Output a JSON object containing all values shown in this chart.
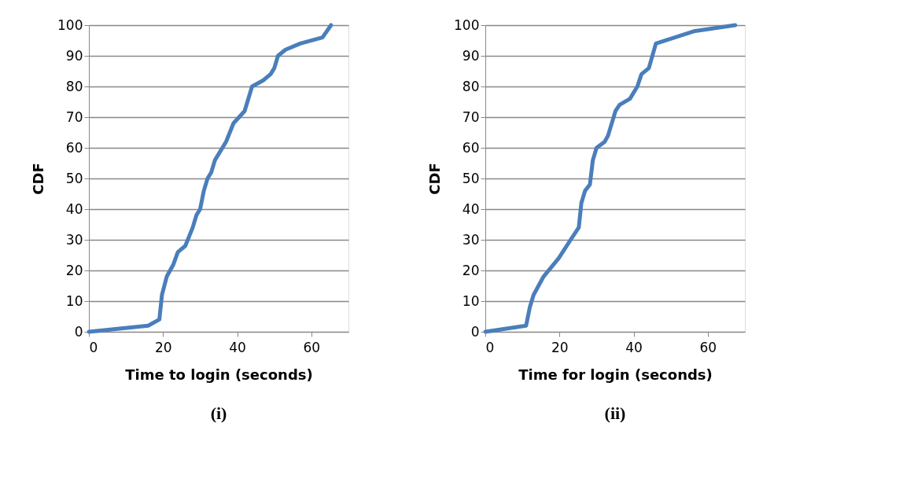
{
  "chart_data": [
    {
      "type": "line",
      "title": "(i)",
      "xlabel": "Time to login (seconds)",
      "ylabel": "CDF",
      "xlim": [
        0,
        70
      ],
      "xticks": [
        0,
        20,
        40,
        60
      ],
      "ylim": [
        0,
        100
      ],
      "yticks": [
        0,
        10,
        20,
        30,
        40,
        50,
        60,
        70,
        80,
        90,
        100
      ],
      "grid": "y",
      "marker": "none",
      "line_style": "solid",
      "series": [
        {
          "color": "#4a7ebb",
          "x": [
            0,
            16,
            19,
            19.7,
            21,
            22.8,
            24,
            26,
            28,
            29,
            30,
            31,
            32,
            33,
            34,
            37,
            39,
            42,
            44,
            47,
            49,
            50,
            51,
            53,
            57,
            63,
            65.3
          ],
          "values": [
            0,
            2,
            4,
            12,
            18,
            22,
            26,
            28,
            34,
            38,
            40,
            46,
            50,
            52,
            56,
            62,
            68,
            72,
            80,
            82,
            84,
            86,
            90,
            92,
            94,
            96,
            100
          ]
        }
      ]
    },
    {
      "type": "line",
      "title": "(ii)",
      "xlabel": "Time for login (seconds)",
      "ylabel": "CDF",
      "xlim": [
        0,
        70
      ],
      "xticks": [
        0,
        20,
        40,
        60
      ],
      "ylim": [
        0,
        100
      ],
      "yticks": [
        0,
        10,
        20,
        30,
        40,
        50,
        60,
        70,
        80,
        90,
        100
      ],
      "grid": "y",
      "marker": "none",
      "line_style": "solid",
      "series": [
        {
          "color": "#4a7ebb",
          "x": [
            0,
            11,
            12,
            13,
            15.7,
            19.8,
            23,
            25.2,
            25.9,
            26.9,
            28.2,
            29,
            30,
            32.2,
            33.1,
            35.1,
            36.2,
            39,
            41,
            42.1,
            44.1,
            46,
            56.2,
            67.4
          ],
          "values": [
            0,
            2,
            8,
            12,
            18,
            24,
            30,
            34,
            42,
            46,
            48,
            56,
            60,
            62,
            64,
            72,
            74,
            76,
            80,
            84,
            86,
            94,
            98,
            100
          ]
        }
      ]
    }
  ]
}
